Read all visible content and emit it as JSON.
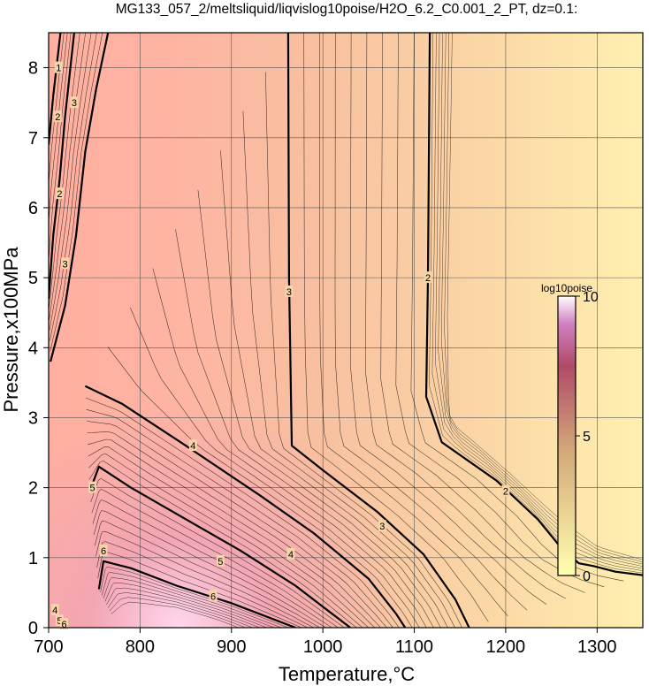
{
  "chart_data": {
    "type": "contour",
    "title": "MG133_057_2/meltsliquid/liqvislog10poise/H2O_6.2_C0.001_2_PT, dz=0.1:",
    "xlabel": "Temperature,°C",
    "ylabel": "Pressure,x100MPa",
    "xlim": [
      700,
      1350
    ],
    "ylim": [
      0,
      8.5
    ],
    "x_ticks": [
      700,
      800,
      900,
      1000,
      1100,
      1200,
      1300
    ],
    "y_ticks": [
      0,
      1,
      2,
      3,
      4,
      5,
      6,
      7,
      8
    ],
    "x_tick_labels": [
      "700",
      "800",
      "900",
      "1000",
      "1100",
      "1200",
      "1300"
    ],
    "y_tick_labels": [
      "0",
      "1",
      "2",
      "3",
      "4",
      "5",
      "6",
      "7",
      "8"
    ],
    "grid": true,
    "contour_interval": 0.1,
    "colorbar": {
      "title": "log10poise",
      "range": [
        0,
        10
      ],
      "ticks": [
        0,
        5,
        10
      ],
      "tick_labels": [
        "0",
        "5",
        "10"
      ],
      "colors": [
        "#ffffb0",
        "#d2a878",
        "#b04a68",
        "#ffffff"
      ]
    },
    "labeled_contours": [
      {
        "level": 2,
        "label": "2",
        "points": [
          [
            1117,
            8.5
          ],
          [
            1115,
            5.0
          ],
          [
            1113,
            3.3
          ],
          [
            1130,
            2.65
          ],
          [
            1190,
            2.1
          ],
          [
            1235,
            1.55
          ],
          [
            1260,
            1.15
          ],
          [
            1280,
            0.92
          ],
          [
            1296,
            0.88
          ],
          [
            1320,
            0.8
          ],
          [
            1350,
            0.75
          ]
        ]
      },
      {
        "level": 3,
        "label": "3",
        "points": [
          [
            962,
            8.5
          ],
          [
            963,
            5.0
          ],
          [
            966,
            2.6
          ],
          [
            1000,
            2.25
          ],
          [
            1060,
            1.65
          ],
          [
            1110,
            1.05
          ],
          [
            1145,
            0.4
          ],
          [
            1160,
            0.0
          ]
        ]
      },
      {
        "level": 4,
        "label": "4",
        "points": [
          [
            740,
            3.45
          ],
          [
            780,
            3.2
          ],
          [
            850,
            2.6
          ],
          [
            930,
            1.9
          ],
          [
            990,
            1.35
          ],
          [
            1050,
            0.7
          ],
          [
            1080,
            0.2
          ],
          [
            1090,
            0.0
          ]
        ]
      },
      {
        "level": 5,
        "label": "5",
        "points": [
          [
            745,
            1.95
          ],
          [
            755,
            2.3
          ],
          [
            790,
            2.0
          ],
          [
            850,
            1.55
          ],
          [
            910,
            1.1
          ],
          [
            970,
            0.6
          ],
          [
            1010,
            0.2
          ],
          [
            1030,
            0.0
          ]
        ]
      },
      {
        "level": 6,
        "label": "6",
        "points": [
          [
            755,
            0.55
          ],
          [
            760,
            0.95
          ],
          [
            790,
            0.85
          ],
          [
            840,
            0.6
          ],
          [
            900,
            0.35
          ],
          [
            950,
            0.1
          ],
          [
            970,
            0.0
          ]
        ]
      },
      {
        "level": 3,
        "label": "3",
        "points": [
          [
            702,
            3.8
          ],
          [
            718,
            4.6
          ],
          [
            730,
            5.6
          ],
          [
            740,
            6.8
          ],
          [
            752,
            7.7
          ],
          [
            765,
            8.5
          ]
        ]
      },
      {
        "level": 2,
        "label": "2",
        "points": [
          [
            700,
            4.7
          ],
          [
            705,
            5.6
          ],
          [
            712,
            6.4
          ],
          [
            718,
            7.3
          ],
          [
            728,
            8.5
          ]
        ]
      },
      {
        "level": 1,
        "label": "1",
        "points": [
          [
            700,
            6.9
          ],
          [
            705,
            7.6
          ],
          [
            713,
            8.5
          ]
        ]
      }
    ],
    "contour_labels": [
      {
        "text": "2",
        "x": 1115,
        "y": 5.0
      },
      {
        "text": "2",
        "x": 1200,
        "y": 1.95
      },
      {
        "text": "3",
        "x": 963,
        "y": 4.8
      },
      {
        "text": "3",
        "x": 1065,
        "y": 1.45
      },
      {
        "text": "4",
        "x": 858,
        "y": 2.6
      },
      {
        "text": "4",
        "x": 965,
        "y": 1.05
      },
      {
        "text": "5",
        "x": 748,
        "y": 2.0
      },
      {
        "text": "5",
        "x": 888,
        "y": 0.95
      },
      {
        "text": "6",
        "x": 760,
        "y": 1.1
      },
      {
        "text": "6",
        "x": 880,
        "y": 0.45
      },
      {
        "text": "3",
        "x": 728,
        "y": 7.5
      },
      {
        "text": "2",
        "x": 712,
        "y": 6.2
      },
      {
        "text": "3",
        "x": 718,
        "y": 5.2
      },
      {
        "text": "2",
        "x": 710,
        "y": 7.3
      },
      {
        "text": "1",
        "x": 711,
        "y": 8.0
      },
      {
        "text": "4",
        "x": 707,
        "y": 0.25
      },
      {
        "text": "5",
        "x": 712,
        "y": 0.1
      },
      {
        "text": "6",
        "x": 717,
        "y": 0.05
      }
    ]
  }
}
